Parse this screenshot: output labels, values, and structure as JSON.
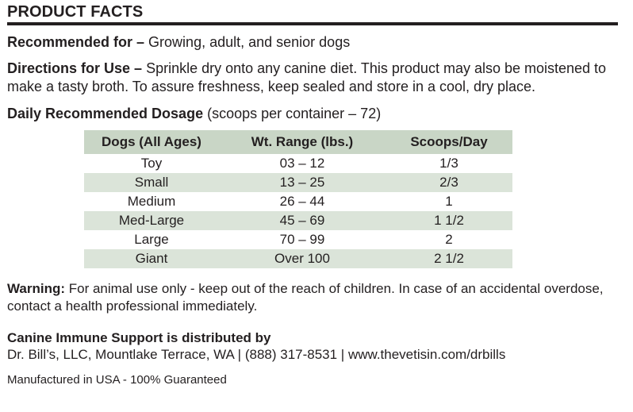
{
  "heading": "PRODUCT FACTS",
  "recommended": {
    "label": "Recommended for –",
    "text": " Growing, adult, and senior dogs"
  },
  "directions": {
    "label": "Directions for Use –",
    "text": " Sprinkle dry onto any canine diet. This product may also be moistened to make a tasty broth. To assure freshness, keep sealed and store in a cool, dry place."
  },
  "dosage": {
    "label": "Daily Recommended Dosage",
    "note": " (scoops per container – 72)",
    "headers": [
      "Dogs (All Ages)",
      "Wt. Range (lbs.)",
      "Scoops/Day"
    ],
    "rows": [
      [
        "Toy",
        "03 – 12",
        "1/3"
      ],
      [
        "Small",
        "13 – 25",
        "2/3"
      ],
      [
        "Medium",
        "26 – 44",
        "1"
      ],
      [
        "Med-Large",
        "45 – 69",
        "1 1/2"
      ],
      [
        "Large",
        "70 – 99",
        "2"
      ],
      [
        "Giant",
        "Over 100",
        "2 1/2"
      ]
    ],
    "header_color": "#c9d6c6",
    "stripe_color": "#dbe4d9"
  },
  "warning": {
    "label": "Warning:",
    "text": " For animal use only - keep out of the reach of children. In case of an accidental overdose, contact a health professional immediately."
  },
  "distributor": {
    "title": "Canine Immune Support is distributed by",
    "line": "Dr. Bill’s, LLC, Mountlake Terrace, WA | (888) 317-8531 | www.thevetisin.com/drbills"
  },
  "manufactured": "Manufactured in USA - 100% Guaranteed"
}
